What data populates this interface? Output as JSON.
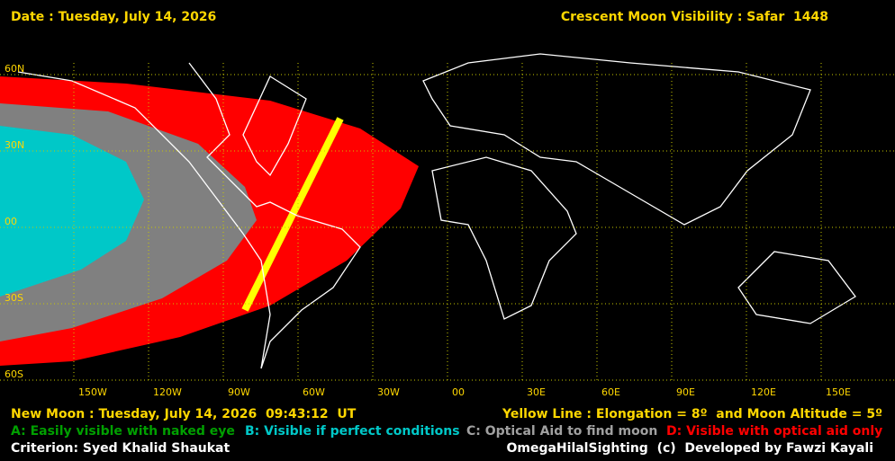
{
  "header": {
    "date": "Date : Tuesday, July 14, 2026",
    "title": "Crescent Moon Visibility : Safar  1448"
  },
  "map": {
    "lat_labels": [
      "60N",
      "30N",
      "00",
      "30S",
      "60S"
    ],
    "lon_labels": [
      "150W",
      "120W",
      "90W",
      "60W",
      "30W",
      "00",
      "30E",
      "60E",
      "90E",
      "120E",
      "150E"
    ]
  },
  "footer": {
    "new_moon": "New Moon : Tuesday, July 14, 2026  09:43:12  UT",
    "yellow_line": "Yellow Line : Elongation = 8º  and Moon Altitude = 5º",
    "legend": [
      "A: Easily visible with naked eye",
      "B: Visible if perfect conditions",
      "C: Optical Aid to find moon",
      "D: Visible with optical aid only"
    ],
    "criterion": "Criterion: Syed Khalid Shaukat",
    "credit": "OmegaHilalSighting  (c)  Developed by Fawzi Kayali"
  }
}
